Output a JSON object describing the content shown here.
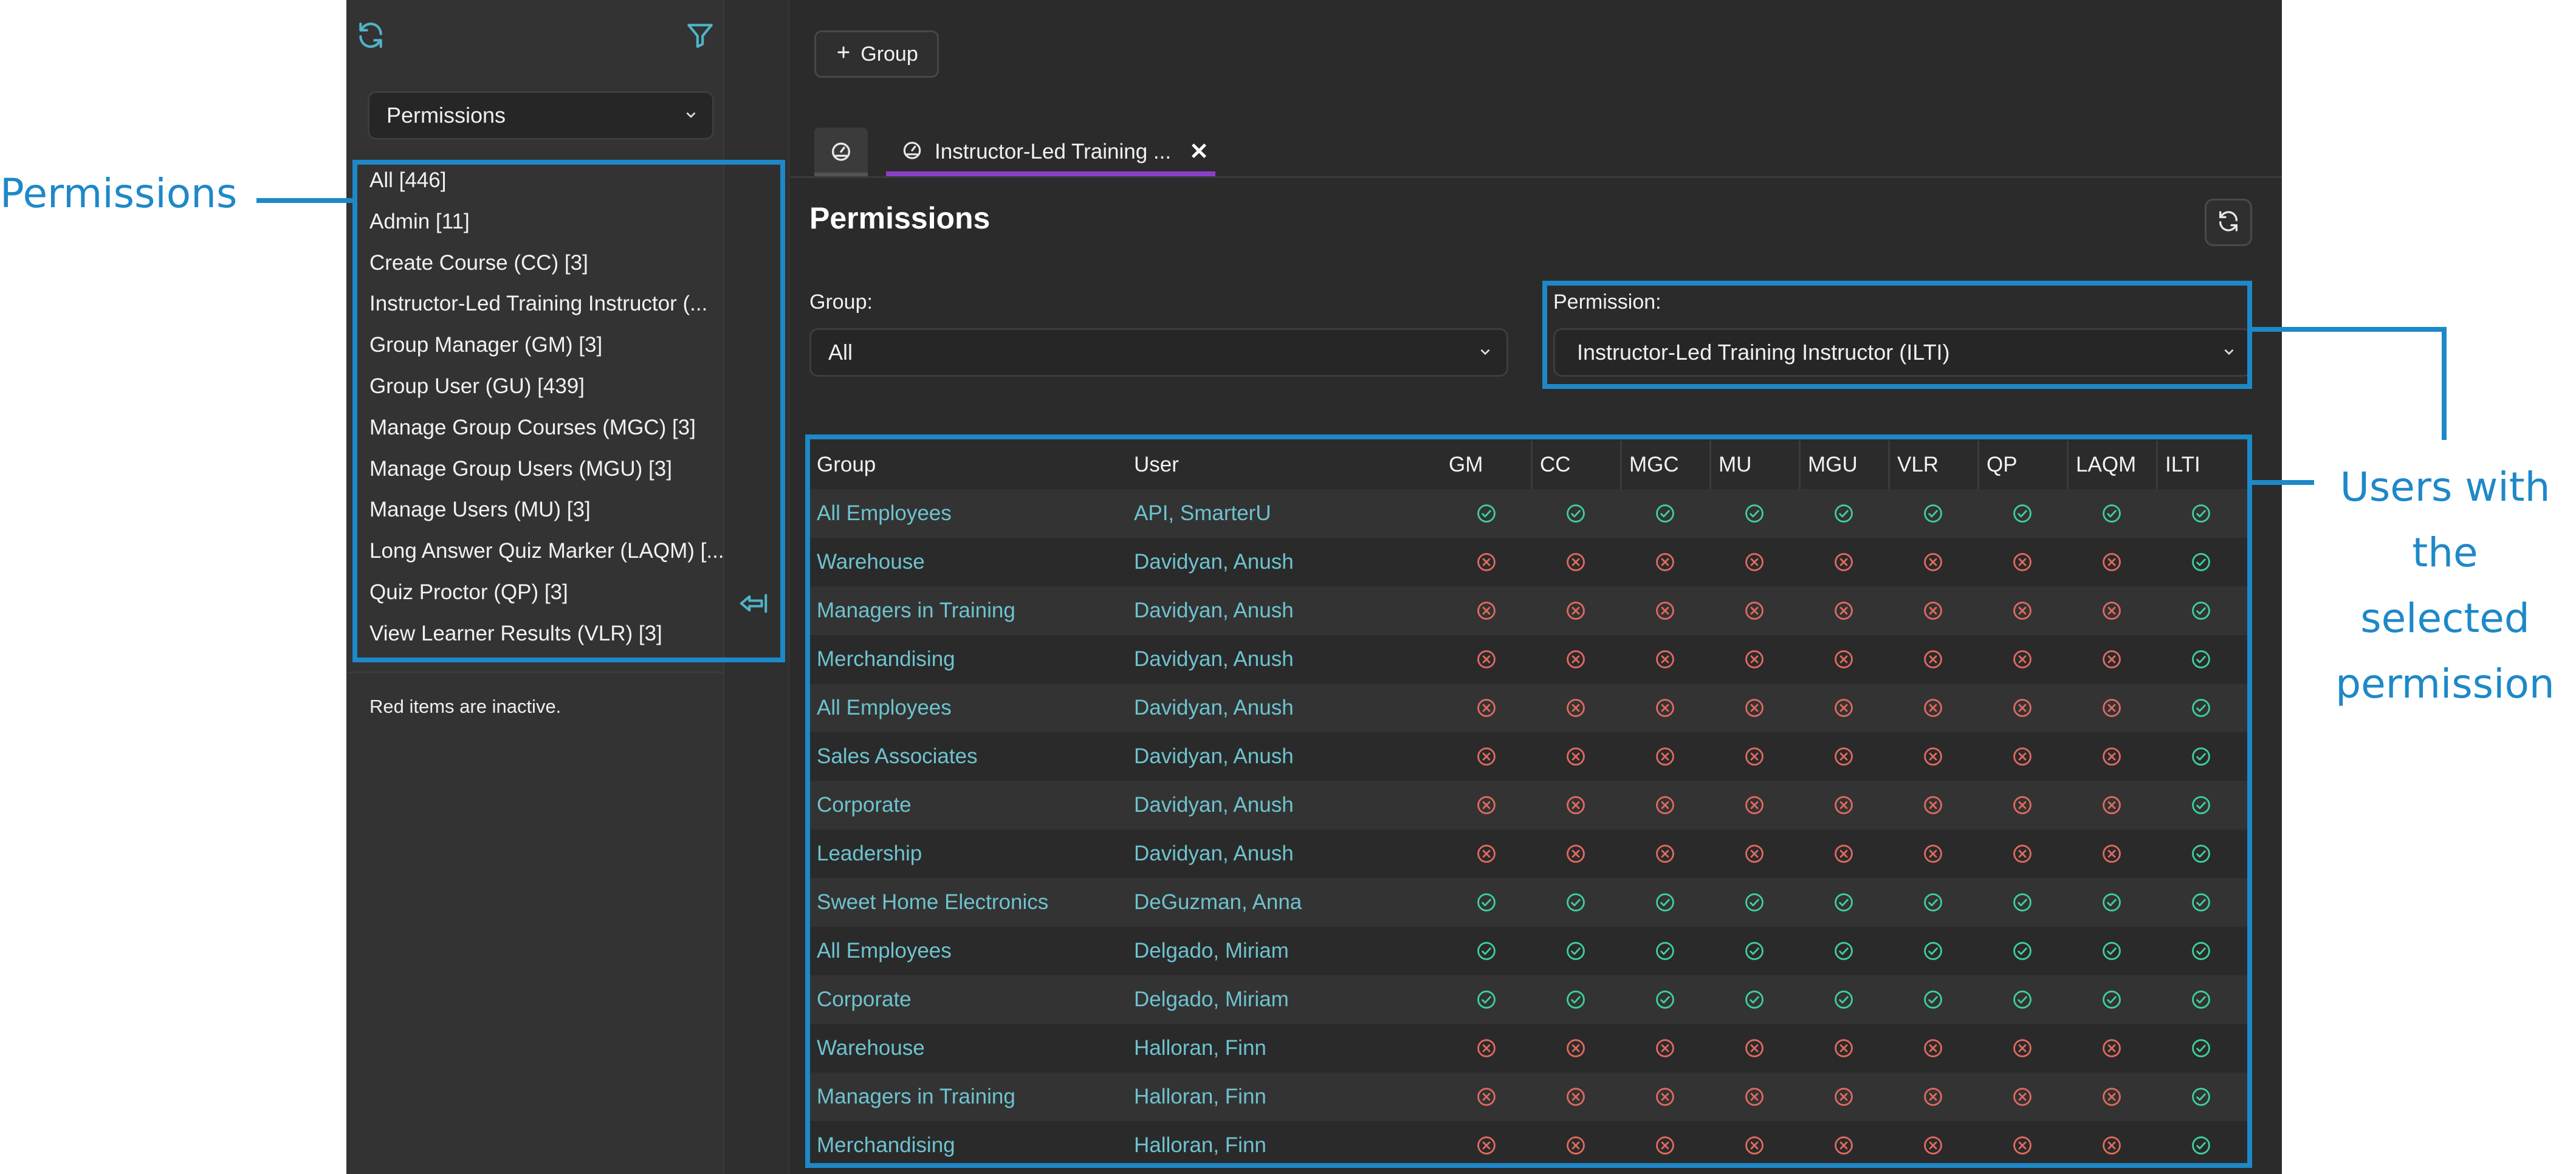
{
  "sidebar": {
    "refresh_icon": "refresh-icon",
    "filter_icon": "filter-icon",
    "dropdown_value": "Permissions",
    "items": [
      {
        "label": "All [446]"
      },
      {
        "label": "Admin [11]"
      },
      {
        "label": "Create Course (CC) [3]"
      },
      {
        "label": "Instructor-Led Training Instructor (..."
      },
      {
        "label": "Group Manager (GM) [3]"
      },
      {
        "label": "Group User (GU) [439]"
      },
      {
        "label": "Manage Group Courses (MGC) [3]"
      },
      {
        "label": "Manage Group Users (MGU) [3]"
      },
      {
        "label": "Manage Users (MU) [3]"
      },
      {
        "label": "Long Answer Quiz Marker (LAQM) [..."
      },
      {
        "label": "Quiz Proctor (QP) [3]"
      },
      {
        "label": "View Learner Results (VLR) [3]"
      }
    ],
    "collapse_icon": "collapse-left-icon",
    "footnote": "Red items are inactive."
  },
  "toolbar": {
    "group_button_label": "Group"
  },
  "tabs": {
    "home_icon": "dashboard-icon",
    "active_tab_label": "Instructor-Led Training ...",
    "close_label": "✕"
  },
  "main": {
    "title": "Permissions",
    "group_label": "Group:",
    "group_value": "All",
    "permission_label": "Permission:",
    "permission_value": "Instructor-Led Training Instructor (ILTI)"
  },
  "table": {
    "headers": {
      "group": "Group",
      "user": "User",
      "perms": [
        "GM",
        "CC",
        "MGC",
        "MU",
        "MGU",
        "VLR",
        "QP",
        "LAQM",
        "ILTI"
      ]
    },
    "rows": [
      {
        "group": "All Employees",
        "user": "API, SmarterU",
        "perms": [
          1,
          1,
          1,
          1,
          1,
          1,
          1,
          1,
          1
        ]
      },
      {
        "group": "Warehouse",
        "user": "Davidyan, Anush",
        "perms": [
          0,
          0,
          0,
          0,
          0,
          0,
          0,
          0,
          1
        ]
      },
      {
        "group": "Managers in Training",
        "user": "Davidyan, Anush",
        "perms": [
          0,
          0,
          0,
          0,
          0,
          0,
          0,
          0,
          1
        ]
      },
      {
        "group": "Merchandising",
        "user": "Davidyan, Anush",
        "perms": [
          0,
          0,
          0,
          0,
          0,
          0,
          0,
          0,
          1
        ]
      },
      {
        "group": "All Employees",
        "user": "Davidyan, Anush",
        "perms": [
          0,
          0,
          0,
          0,
          0,
          0,
          0,
          0,
          1
        ]
      },
      {
        "group": "Sales Associates",
        "user": "Davidyan, Anush",
        "perms": [
          0,
          0,
          0,
          0,
          0,
          0,
          0,
          0,
          1
        ]
      },
      {
        "group": "Corporate",
        "user": "Davidyan, Anush",
        "perms": [
          0,
          0,
          0,
          0,
          0,
          0,
          0,
          0,
          1
        ]
      },
      {
        "group": "Leadership",
        "user": "Davidyan, Anush",
        "perms": [
          0,
          0,
          0,
          0,
          0,
          0,
          0,
          0,
          1
        ]
      },
      {
        "group": "Sweet Home Electronics",
        "user": "DeGuzman, Anna",
        "perms": [
          1,
          1,
          1,
          1,
          1,
          1,
          1,
          1,
          1
        ]
      },
      {
        "group": "All Employees",
        "user": "Delgado, Miriam",
        "perms": [
          1,
          1,
          1,
          1,
          1,
          1,
          1,
          1,
          1
        ]
      },
      {
        "group": "Corporate",
        "user": "Delgado, Miriam",
        "perms": [
          1,
          1,
          1,
          1,
          1,
          1,
          1,
          1,
          1
        ]
      },
      {
        "group": "Warehouse",
        "user": "Halloran, Finn",
        "perms": [
          0,
          0,
          0,
          0,
          0,
          0,
          0,
          0,
          1
        ]
      },
      {
        "group": "Managers in Training",
        "user": "Halloran, Finn",
        "perms": [
          0,
          0,
          0,
          0,
          0,
          0,
          0,
          0,
          1
        ]
      },
      {
        "group": "Merchandising",
        "user": "Halloran, Finn",
        "perms": [
          0,
          0,
          0,
          0,
          0,
          0,
          0,
          0,
          1
        ]
      }
    ]
  },
  "annotations": {
    "left_label": "Permissions",
    "right_label_lines": [
      "Users with the",
      "selected",
      "permission"
    ]
  },
  "colors": {
    "accent_tab": "#8b3fc9",
    "link": "#6ec3cf",
    "check": "#3fcf9a",
    "cross": "#e06a5f",
    "annotation": "#1e88c8"
  }
}
